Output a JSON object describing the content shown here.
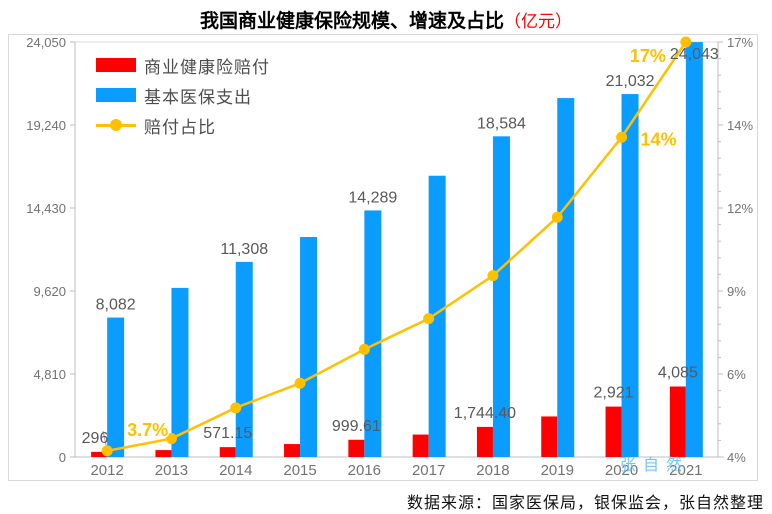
{
  "title": {
    "main": "我国商业健康保险规模、增速及占比",
    "unit": "（亿元）"
  },
  "footer": {
    "source": "数据来源：国家医保局，银保监会，张自然整理"
  },
  "watermark": "张自然",
  "colors": {
    "claims": "#FF0000",
    "medicare": "#0A9DFF",
    "ratio": "#FFC000",
    "frame": "#D9D9D9",
    "axis": "#BFBFBF",
    "data_label": "#595959",
    "tick_label": "#737373",
    "title_unit": "#FF0000",
    "watermark": "#66C2F5",
    "legend_text": "#4D4D4D",
    "leader_line": "#A6A6A6"
  },
  "legend": [
    {
      "label": "商业健康险赔付",
      "type": "bar",
      "color_key": "claims"
    },
    {
      "label": "基本医保支出",
      "type": "bar",
      "color_key": "medicare"
    },
    {
      "label": "赔付占比",
      "type": "line",
      "color_key": "ratio"
    }
  ],
  "chart_data": {
    "type": "bar",
    "subtype": "combo-bar-line-dual-axis",
    "title": "我国商业健康保险规模、增速及占比（亿元）",
    "categories": [
      "2012",
      "2013",
      "2014",
      "2015",
      "2016",
      "2017",
      "2018",
      "2019",
      "2020",
      "2021"
    ],
    "series": [
      {
        "key": "claims",
        "name": "商业健康险赔付",
        "type": "bar",
        "axis": "left",
        "color": "#FF0000",
        "values": [
          296,
          400,
          571.15,
          750,
          999.61,
          1300,
          1744.4,
          2350,
          2921,
          4085
        ],
        "labels": [
          "296",
          null,
          "571.15",
          null,
          "999.61",
          null,
          "1,744.40",
          null,
          "2,921",
          "4,085"
        ]
      },
      {
        "key": "medicare",
        "name": "基本医保支出",
        "type": "bar",
        "axis": "left",
        "color": "#0A9DFF",
        "values": [
          8082,
          9800,
          11308,
          12750,
          14289,
          16300,
          18584,
          20800,
          21032,
          24043
        ],
        "labels": [
          "8,082",
          null,
          "11,308",
          null,
          "14,289",
          null,
          "18,584",
          null,
          "21,032",
          "24,043"
        ]
      },
      {
        "key": "ratio",
        "name": "赔付占比",
        "type": "line",
        "axis": "right",
        "color": "#FFC000",
        "values": [
          3.7,
          4.1,
          5.1,
          5.9,
          7.0,
          8.0,
          9.4,
          11.3,
          13.9,
          17.0
        ],
        "labels": [
          "3.7%",
          null,
          null,
          null,
          null,
          null,
          null,
          null,
          "14%",
          "17%"
        ]
      }
    ],
    "left_axis": {
      "min": 0,
      "max": 24050,
      "tick_labels": [
        "24,050",
        "19,240",
        "14,430",
        "9,620",
        "4,810",
        "0"
      ]
    },
    "right_axis": {
      "min": 3.5,
      "max": 17,
      "tick_labels": [
        "17%",
        "14%",
        "12%",
        "9%",
        "6%",
        "4%"
      ]
    },
    "grid": false,
    "legend_position": "top-left"
  }
}
